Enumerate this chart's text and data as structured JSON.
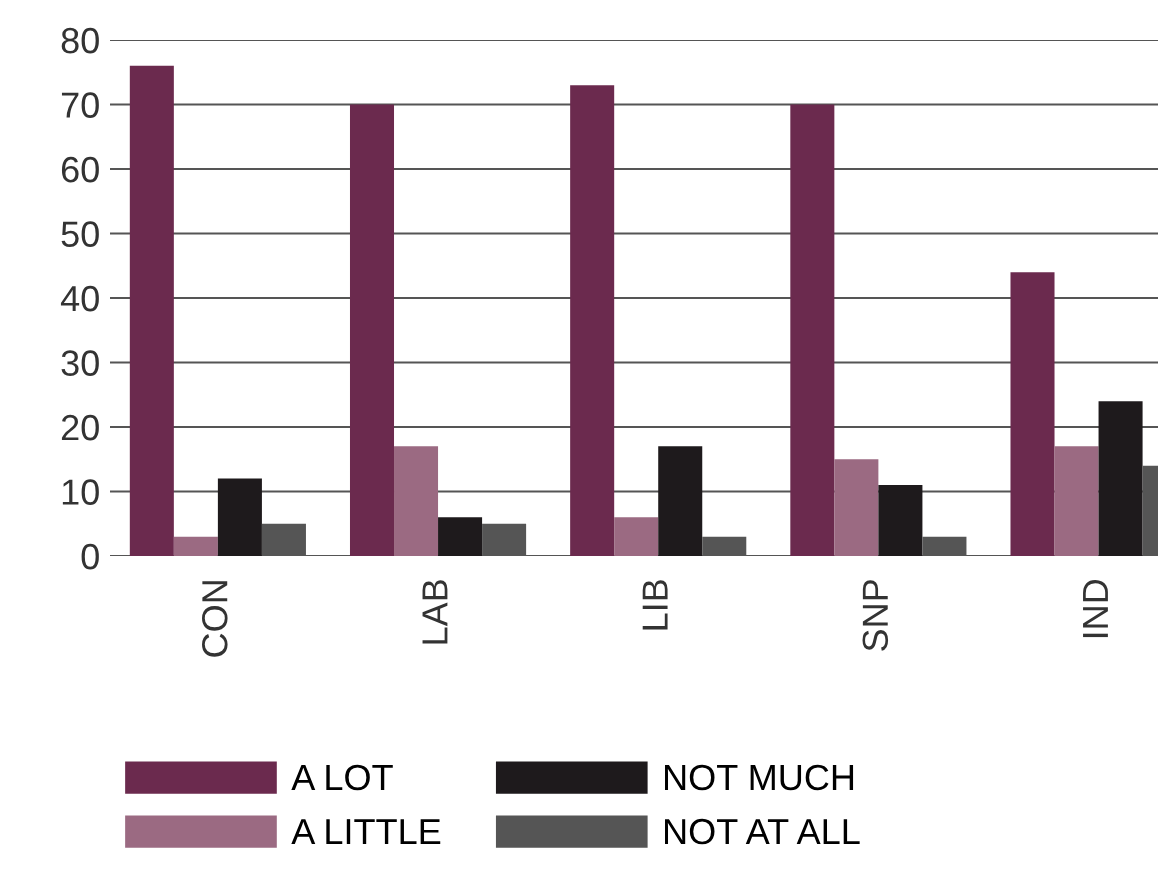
{
  "chart_data": {
    "type": "bar",
    "categories": [
      "CON",
      "LAB",
      "LIB",
      "SNP",
      "IND"
    ],
    "series": [
      {
        "name": "A LOT",
        "color": "#6b2a4e",
        "values": [
          76,
          70,
          73,
          70,
          44
        ]
      },
      {
        "name": "A LITTLE",
        "color": "#9b6a82",
        "values": [
          3,
          17,
          6,
          15,
          17
        ]
      },
      {
        "name": "NOT MUCH",
        "color": "#1e1a1c",
        "values": [
          12,
          6,
          17,
          11,
          24
        ]
      },
      {
        "name": "NOT AT ALL",
        "color": "#555555",
        "values": [
          5,
          5,
          3,
          3,
          14
        ]
      }
    ],
    "ylim": [
      0,
      80
    ],
    "yticks": [
      0,
      10,
      20,
      30,
      40,
      50,
      60,
      70,
      80
    ],
    "grid": "y",
    "legend": "bottom"
  }
}
